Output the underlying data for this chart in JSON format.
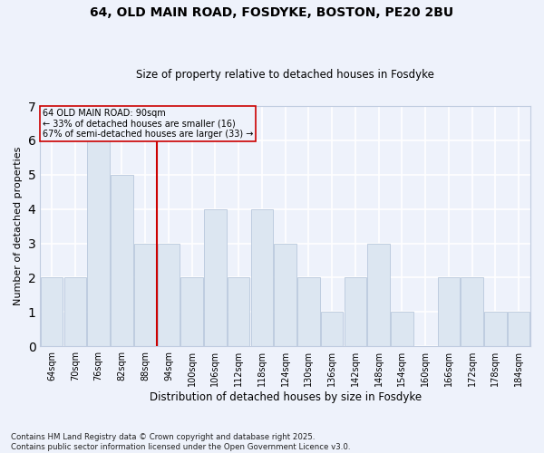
{
  "title1": "64, OLD MAIN ROAD, FOSDYKE, BOSTON, PE20 2BU",
  "title2": "Size of property relative to detached houses in Fosdyke",
  "xlabel": "Distribution of detached houses by size in Fosdyke",
  "ylabel": "Number of detached properties",
  "categories": [
    "64sqm",
    "70sqm",
    "76sqm",
    "82sqm",
    "88sqm",
    "94sqm",
    "100sqm",
    "106sqm",
    "112sqm",
    "118sqm",
    "124sqm",
    "130sqm",
    "136sqm",
    "142sqm",
    "148sqm",
    "154sqm",
    "160sqm",
    "166sqm",
    "172sqm",
    "178sqm",
    "184sqm"
  ],
  "values": [
    2,
    2,
    6,
    5,
    3,
    3,
    2,
    4,
    2,
    4,
    3,
    2,
    1,
    2,
    3,
    1,
    0,
    2,
    2,
    1,
    1
  ],
  "bar_color": "#dce6f1",
  "bar_edge_color": "#b8c8dc",
  "annotation_line1": "64 OLD MAIN ROAD: 90sqm",
  "annotation_line2": "← 33% of detached houses are smaller (16)",
  "annotation_line3": "67% of semi-detached houses are larger (33) →",
  "vline_color": "#cc0000",
  "box_color": "#cc0000",
  "ylim": [
    0,
    7
  ],
  "yticks": [
    0,
    1,
    2,
    3,
    4,
    5,
    6,
    7
  ],
  "footer": "Contains HM Land Registry data © Crown copyright and database right 2025.\nContains public sector information licensed under the Open Government Licence v3.0.",
  "background_color": "#eef2fb",
  "grid_color": "#ffffff"
}
